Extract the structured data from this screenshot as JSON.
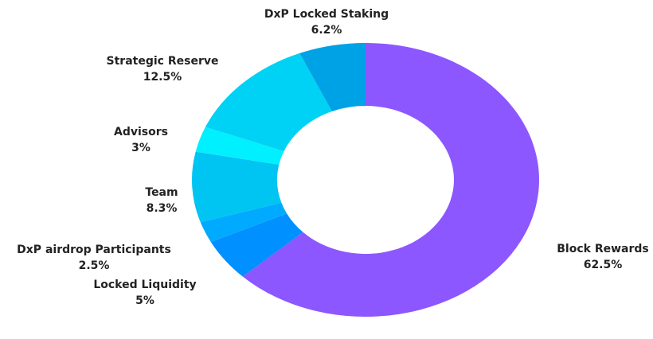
{
  "chart_data": {
    "type": "donut",
    "categories": [
      "Block Rewards",
      "Locked Liquidity",
      "DxP airdrop Participants",
      "Team",
      "Advisors",
      "Strategic Reserve",
      "DxP Locked Staking"
    ],
    "values": [
      62.5,
      5,
      2.5,
      8.3,
      3,
      12.5,
      6.2
    ],
    "value_labels": [
      "62.5%",
      "5%",
      "2.5%",
      "8.3%",
      "3%",
      "12.5%",
      "6.2%"
    ],
    "colors": [
      "#8c57ff",
      "#0090ff",
      "#00aaff",
      "#00c4f2",
      "#00f0ff",
      "#00d2f5",
      "#00a2e6"
    ]
  }
}
